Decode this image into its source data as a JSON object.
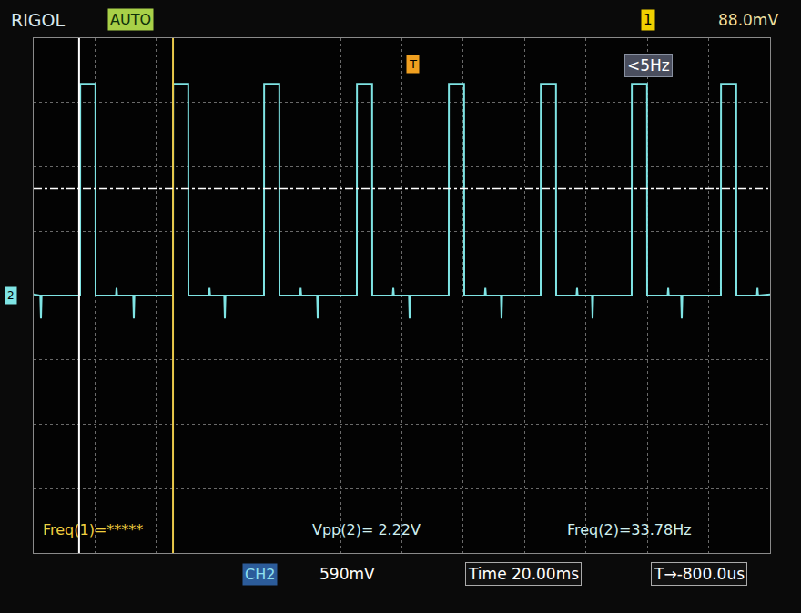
{
  "chart_data": {
    "type": "line",
    "x": [
      0,
      2.17,
      2.37,
      2.57,
      15.13,
      15.18,
      20.12,
      20.17,
      26.8,
      27.0,
      27.2,
      32.43,
      32.63,
      32.83,
      45.39,
      45.44,
      50.38,
      50.43,
      57.1,
      57.3,
      57.5,
      62.1,
      62.3,
      62.5,
      75.05,
      75.1,
      80.05,
      80.1,
      86.8,
      87.0,
      87.2,
      92.36,
      92.56,
      92.76,
      105.31,
      105.36,
      110.3,
      110.35,
      117.0,
      117.2,
      117.4,
      122.32,
      122.52,
      122.72,
      135.27,
      135.32,
      140.27,
      140.32,
      147.0,
      147.2,
      147.4,
      152.28,
      152.48,
      152.68,
      165.24,
      165.29,
      170.23,
      170.28,
      176.9,
      177.1,
      177.3,
      181.95,
      182.15,
      182.35,
      194.9,
      194.95,
      199.89,
      199.94,
      206.6,
      206.8,
      207.0,
      211.02,
      211.22,
      211.42,
      223.97,
      224.02,
      228.97,
      229.02,
      235.7,
      235.9,
      236.1,
      240
    ],
    "values": [
      0.01,
      0,
      -0.21,
      0,
      0,
      1.94,
      1.94,
      0,
      0,
      0.07,
      0,
      0,
      -0.21,
      0,
      0,
      1.94,
      1.94,
      0,
      0,
      0.07,
      0,
      0,
      -0.21,
      0,
      0,
      1.94,
      1.94,
      0,
      0,
      0.07,
      0,
      0,
      -0.21,
      0,
      0,
      1.94,
      1.94,
      0,
      0,
      0.07,
      0,
      0,
      -0.21,
      0,
      0,
      1.94,
      1.94,
      0,
      0,
      0.07,
      0,
      0,
      -0.21,
      0,
      0,
      1.94,
      1.94,
      0,
      0,
      0.07,
      0,
      0,
      -0.21,
      0,
      0,
      1.94,
      1.94,
      0,
      0,
      0.07,
      0,
      0,
      -0.21,
      0,
      0,
      1.94,
      1.94,
      0,
      0,
      0.07,
      0,
      0.01
    ],
    "color": "#7fe4e4",
    "xlim": [
      0,
      240
    ],
    "ylim": [
      -2.36,
      2.36
    ],
    "xticks": [
      0,
      20,
      40,
      60,
      80,
      100,
      120,
      140,
      160,
      180,
      200,
      220,
      240
    ],
    "yticks": [
      -2.36,
      -1.77,
      -1.18,
      -0.59,
      0,
      0.59,
      1.18,
      1.77,
      2.36
    ],
    "grid": true,
    "tick_labels": false,
    "cursors": [
      {
        "value": 14.8,
        "color": "#ffffff"
      },
      {
        "value": 45.4,
        "color": "#e8c84a"
      }
    ],
    "trigger_level": 0.98,
    "annotations": [
      {
        "text": "RIGOL",
        "color": "#d8e8f0"
      },
      {
        "text": "AUTO",
        "color": "#10300a"
      },
      {
        "text": "1",
        "color": "#000000"
      },
      {
        "text": "88.0mV",
        "color": "#f0e0a0"
      },
      {
        "text": "<5Hz",
        "color": "#ffffff"
      },
      {
        "text": "2",
        "color": "#000000"
      },
      {
        "text": "Freq(1)=*****",
        "color": "#f0d040"
      },
      {
        "text": "Vpp(2)= 2.22V",
        "color": "#d0f0f0"
      },
      {
        "text": "Freq(2)=33.78Hz",
        "color": "#d0f0f0"
      },
      {
        "text": "CH2",
        "color": "#90e0f0"
      },
      {
        "text": "590mV",
        "color": "#ffffff"
      },
      {
        "text": "Time 20.00ms",
        "color": "#ffffff"
      },
      {
        "text": "T→-800.0us",
        "color": "#ffffff"
      },
      {
        "text": "T",
        "color": "#000000"
      }
    ]
  }
}
